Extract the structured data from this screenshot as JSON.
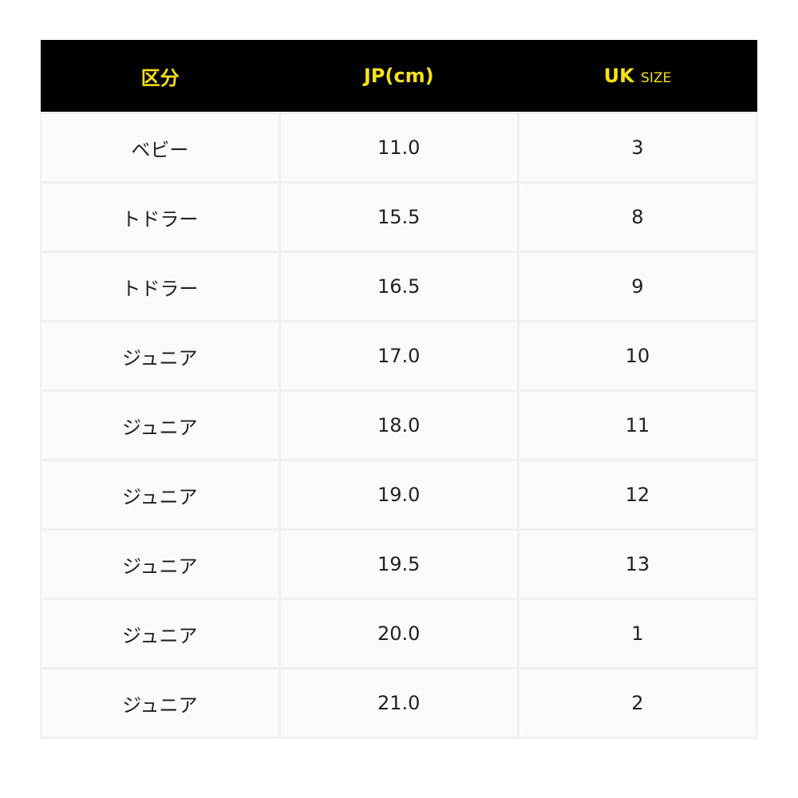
{
  "header": {
    "category": "区分",
    "jp": "JP(cm)",
    "uk": "UK",
    "uk_suffix": "SIZE"
  },
  "colors": {
    "header_bg": "#000000",
    "header_text": "#f7e01a"
  },
  "rows": [
    {
      "category": "ベビー",
      "jp": "11.0",
      "uk": "3"
    },
    {
      "category": "トドラー",
      "jp": "15.5",
      "uk": "8"
    },
    {
      "category": "トドラー",
      "jp": "16.5",
      "uk": "9"
    },
    {
      "category": "ジュニア",
      "jp": "17.0",
      "uk": "10"
    },
    {
      "category": "ジュニア",
      "jp": "18.0",
      "uk": "11"
    },
    {
      "category": "ジュニア",
      "jp": "19.0",
      "uk": "12"
    },
    {
      "category": "ジュニア",
      "jp": "19.5",
      "uk": "13"
    },
    {
      "category": "ジュニア",
      "jp": "20.0",
      "uk": "1"
    },
    {
      "category": "ジュニア",
      "jp": "21.0",
      "uk": "2"
    }
  ]
}
